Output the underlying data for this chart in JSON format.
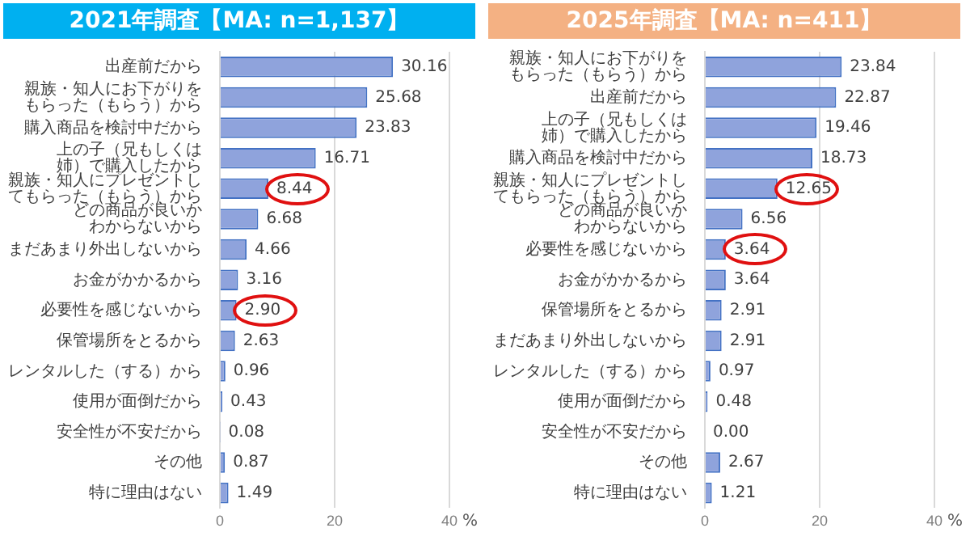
{
  "chart_data": [
    {
      "type": "bar",
      "orientation": "horizontal",
      "title": "2021年調査【MA: n=1,137】",
      "xlabel": "%",
      "categories": [
        "出産前だから",
        "親族・知人にお下がりをもらった（もらう）から",
        "購入商品を検討中だから",
        "上の子（兄もしくは姉）で購入したから",
        "親族・知人にプレゼントしてもらった（もらう）から",
        "どの商品が良いかわからないから",
        "まだあまり外出しないから",
        "お金がかかるから",
        "必要性を感じないから",
        "保管場所をとるから",
        "レンタルした（する）から",
        "使用が面倒だから",
        "安全性が不安だから",
        "その他",
        "特に理由はない"
      ],
      "values": [
        30.16,
        25.68,
        23.83,
        16.71,
        8.44,
        6.68,
        4.66,
        3.16,
        2.9,
        2.63,
        0.96,
        0.43,
        0.08,
        0.87,
        1.49
      ],
      "value_labels": [
        "30.16",
        "25.68",
        "23.83",
        "16.71",
        "8.44",
        "6.68",
        "4.66",
        "3.16",
        "2.90",
        "2.63",
        "0.96",
        "0.43",
        "0.08",
        "0.87",
        "1.49"
      ],
      "color": "#8fa3dc",
      "xlim": [
        0,
        40
      ],
      "xticks": [
        0,
        20,
        40
      ],
      "grid": "x",
      "legend": false
    },
    {
      "type": "bar",
      "orientation": "horizontal",
      "title": "2025年調査【MA: n=411】",
      "xlabel": "%",
      "categories": [
        "親族・知人にお下がりをもらった（もらう）から",
        "出産前だから",
        "上の子（兄もしくは姉）で購入したから",
        "購入商品を検討中だから",
        "親族・知人にプレゼントしてもらった（もらう）から",
        "どの商品が良いかわからないから",
        "必要性を感じないから",
        "お金がかかるから",
        "保管場所をとるから",
        "まだあまり外出しないから",
        "レンタルした（する）から",
        "使用が面倒だから",
        "安全性が不安だから",
        "その他",
        "特に理由はない"
      ],
      "values": [
        23.84,
        22.87,
        19.46,
        18.73,
        12.65,
        6.56,
        3.64,
        3.64,
        2.91,
        2.91,
        0.97,
        0.48,
        0.0,
        2.67,
        1.21
      ],
      "value_labels": [
        "23.84",
        "22.87",
        "19.46",
        "18.73",
        "12.65",
        "6.56",
        "3.64",
        "3.64",
        "2.91",
        "2.91",
        "0.97",
        "0.48",
        "0.00",
        "2.67",
        "1.21"
      ],
      "color": "#8fa3dc",
      "xlim": [
        0,
        40
      ],
      "xticks": [
        0,
        20,
        40
      ],
      "grid": "x",
      "legend": false
    }
  ]
}
